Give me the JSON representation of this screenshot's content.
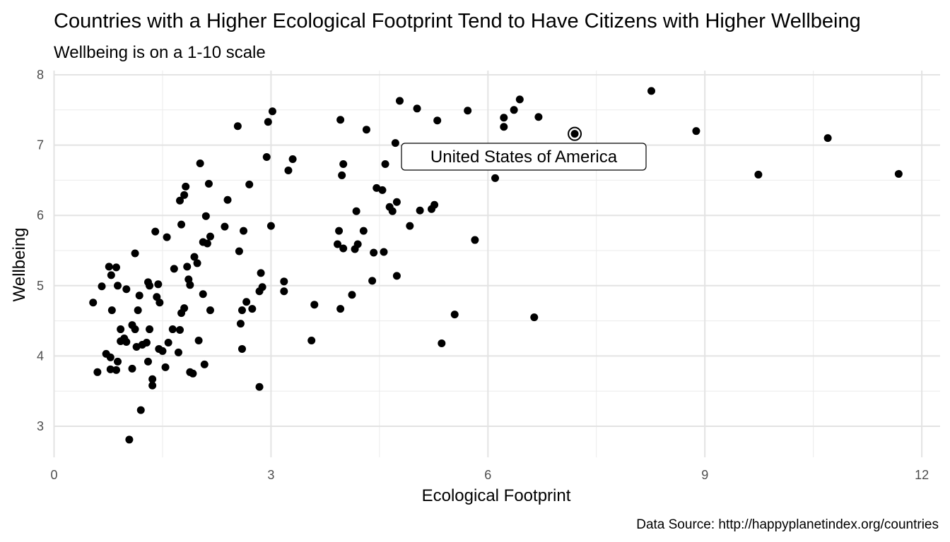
{
  "chart_data": {
    "type": "scatter",
    "title": "Countries with a Higher Ecological Footprint Tend to Have Citizens with Higher Wellbeing",
    "subtitle": "Wellbeing is on a 1-10 scale",
    "xlabel": "Ecological Footprint",
    "ylabel": "Wellbeing",
    "caption": "Data Source: http://happyplanetindex.org/countries",
    "xlim": [
      0,
      12.2
    ],
    "ylim": [
      2.6,
      8.0
    ],
    "x_ticks": [
      "0",
      "3",
      "6",
      "9",
      "12"
    ],
    "y_ticks": [
      "3",
      "4",
      "5",
      "6",
      "7",
      "8"
    ],
    "grid": true,
    "highlight": {
      "label": "United States of America",
      "x": 7.2,
      "y": 7.16
    },
    "points": [
      {
        "x": 0.54,
        "y": 4.76
      },
      {
        "x": 0.6,
        "y": 3.77
      },
      {
        "x": 0.66,
        "y": 4.99
      },
      {
        "x": 0.72,
        "y": 4.03
      },
      {
        "x": 0.76,
        "y": 5.27
      },
      {
        "x": 0.78,
        "y": 3.98
      },
      {
        "x": 0.78,
        "y": 3.81
      },
      {
        "x": 0.79,
        "y": 5.15
      },
      {
        "x": 0.8,
        "y": 4.65
      },
      {
        "x": 0.86,
        "y": 5.26
      },
      {
        "x": 0.86,
        "y": 3.8
      },
      {
        "x": 0.88,
        "y": 3.92
      },
      {
        "x": 0.88,
        "y": 5.0
      },
      {
        "x": 0.92,
        "y": 4.38
      },
      {
        "x": 0.92,
        "y": 4.21
      },
      {
        "x": 0.97,
        "y": 4.25
      },
      {
        "x": 1.0,
        "y": 4.2
      },
      {
        "x": 1.0,
        "y": 4.95
      },
      {
        "x": 1.04,
        "y": 2.81
      },
      {
        "x": 1.08,
        "y": 4.44
      },
      {
        "x": 1.08,
        "y": 3.82
      },
      {
        "x": 1.12,
        "y": 5.46
      },
      {
        "x": 1.12,
        "y": 4.38
      },
      {
        "x": 1.14,
        "y": 4.13
      },
      {
        "x": 1.16,
        "y": 4.65
      },
      {
        "x": 1.18,
        "y": 4.86
      },
      {
        "x": 1.2,
        "y": 3.23
      },
      {
        "x": 1.22,
        "y": 4.16
      },
      {
        "x": 1.28,
        "y": 4.19
      },
      {
        "x": 1.3,
        "y": 5.05
      },
      {
        "x": 1.3,
        "y": 3.92
      },
      {
        "x": 1.32,
        "y": 4.38
      },
      {
        "x": 1.32,
        "y": 5.0
      },
      {
        "x": 1.36,
        "y": 3.67
      },
      {
        "x": 1.36,
        "y": 3.58
      },
      {
        "x": 1.4,
        "y": 5.77
      },
      {
        "x": 1.42,
        "y": 4.84
      },
      {
        "x": 1.44,
        "y": 5.02
      },
      {
        "x": 1.45,
        "y": 4.1
      },
      {
        "x": 1.46,
        "y": 4.76
      },
      {
        "x": 1.5,
        "y": 4.07
      },
      {
        "x": 1.54,
        "y": 3.84
      },
      {
        "x": 1.56,
        "y": 5.69
      },
      {
        "x": 1.58,
        "y": 4.19
      },
      {
        "x": 1.64,
        "y": 4.38
      },
      {
        "x": 1.66,
        "y": 5.24
      },
      {
        "x": 1.72,
        "y": 4.05
      },
      {
        "x": 1.74,
        "y": 6.21
      },
      {
        "x": 1.74,
        "y": 4.37
      },
      {
        "x": 1.76,
        "y": 5.87
      },
      {
        "x": 1.76,
        "y": 4.61
      },
      {
        "x": 1.8,
        "y": 4.68
      },
      {
        "x": 1.8,
        "y": 6.29
      },
      {
        "x": 1.82,
        "y": 6.41
      },
      {
        "x": 1.84,
        "y": 5.27
      },
      {
        "x": 1.86,
        "y": 5.09
      },
      {
        "x": 1.88,
        "y": 5.01
      },
      {
        "x": 1.88,
        "y": 3.77
      },
      {
        "x": 1.92,
        "y": 3.75
      },
      {
        "x": 1.94,
        "y": 5.41
      },
      {
        "x": 1.98,
        "y": 5.32
      },
      {
        "x": 2.0,
        "y": 4.22
      },
      {
        "x": 2.02,
        "y": 6.74
      },
      {
        "x": 2.06,
        "y": 5.62
      },
      {
        "x": 2.06,
        "y": 4.88
      },
      {
        "x": 2.08,
        "y": 3.88
      },
      {
        "x": 2.1,
        "y": 5.99
      },
      {
        "x": 2.12,
        "y": 5.6
      },
      {
        "x": 2.14,
        "y": 6.45
      },
      {
        "x": 2.16,
        "y": 4.65
      },
      {
        "x": 2.16,
        "y": 5.7
      },
      {
        "x": 2.36,
        "y": 5.84
      },
      {
        "x": 2.4,
        "y": 6.22
      },
      {
        "x": 2.54,
        "y": 7.27
      },
      {
        "x": 2.56,
        "y": 5.49
      },
      {
        "x": 2.58,
        "y": 4.46
      },
      {
        "x": 2.6,
        "y": 4.1
      },
      {
        "x": 2.6,
        "y": 4.65
      },
      {
        "x": 2.62,
        "y": 5.78
      },
      {
        "x": 2.66,
        "y": 4.77
      },
      {
        "x": 2.7,
        "y": 6.44
      },
      {
        "x": 2.74,
        "y": 4.67
      },
      {
        "x": 2.84,
        "y": 3.56
      },
      {
        "x": 2.84,
        "y": 4.92
      },
      {
        "x": 2.86,
        "y": 5.18
      },
      {
        "x": 2.88,
        "y": 4.98
      },
      {
        "x": 2.94,
        "y": 6.83
      },
      {
        "x": 2.96,
        "y": 7.33
      },
      {
        "x": 3.0,
        "y": 5.85
      },
      {
        "x": 3.02,
        "y": 7.48
      },
      {
        "x": 3.18,
        "y": 5.06
      },
      {
        "x": 3.18,
        "y": 4.92
      },
      {
        "x": 3.24,
        "y": 6.64
      },
      {
        "x": 3.3,
        "y": 6.8
      },
      {
        "x": 3.56,
        "y": 4.22
      },
      {
        "x": 3.6,
        "y": 4.73
      },
      {
        "x": 3.92,
        "y": 5.59
      },
      {
        "x": 3.94,
        "y": 5.78
      },
      {
        "x": 3.96,
        "y": 7.36
      },
      {
        "x": 3.96,
        "y": 4.67
      },
      {
        "x": 3.98,
        "y": 6.57
      },
      {
        "x": 4.0,
        "y": 6.73
      },
      {
        "x": 4.0,
        "y": 5.53
      },
      {
        "x": 4.12,
        "y": 4.87
      },
      {
        "x": 4.16,
        "y": 5.52
      },
      {
        "x": 4.18,
        "y": 6.06
      },
      {
        "x": 4.2,
        "y": 5.59
      },
      {
        "x": 4.28,
        "y": 5.78
      },
      {
        "x": 4.32,
        "y": 7.22
      },
      {
        "x": 4.4,
        "y": 5.07
      },
      {
        "x": 4.42,
        "y": 5.47
      },
      {
        "x": 4.46,
        "y": 6.39
      },
      {
        "x": 4.54,
        "y": 6.36
      },
      {
        "x": 4.56,
        "y": 5.48
      },
      {
        "x": 4.58,
        "y": 6.73
      },
      {
        "x": 4.64,
        "y": 6.12
      },
      {
        "x": 4.68,
        "y": 6.06
      },
      {
        "x": 4.72,
        "y": 7.03
      },
      {
        "x": 4.74,
        "y": 5.14
      },
      {
        "x": 4.74,
        "y": 6.19
      },
      {
        "x": 4.78,
        "y": 7.63
      },
      {
        "x": 4.92,
        "y": 5.85
      },
      {
        "x": 5.02,
        "y": 7.52
      },
      {
        "x": 5.06,
        "y": 6.07
      },
      {
        "x": 5.22,
        "y": 6.09
      },
      {
        "x": 5.26,
        "y": 6.15
      },
      {
        "x": 5.3,
        "y": 7.35
      },
      {
        "x": 5.36,
        "y": 4.18
      },
      {
        "x": 5.54,
        "y": 4.59
      },
      {
        "x": 5.72,
        "y": 7.49
      },
      {
        "x": 5.82,
        "y": 5.65
      },
      {
        "x": 6.1,
        "y": 6.53
      },
      {
        "x": 6.22,
        "y": 7.39
      },
      {
        "x": 6.22,
        "y": 7.26
      },
      {
        "x": 6.36,
        "y": 7.5
      },
      {
        "x": 6.44,
        "y": 7.65
      },
      {
        "x": 6.64,
        "y": 4.55
      },
      {
        "x": 6.7,
        "y": 7.4
      },
      {
        "x": 7.2,
        "y": 7.16
      },
      {
        "x": 7.56,
        "y": 6.7
      },
      {
        "x": 8.26,
        "y": 7.77
      },
      {
        "x": 8.88,
        "y": 7.2
      },
      {
        "x": 9.74,
        "y": 6.58
      },
      {
        "x": 10.7,
        "y": 7.1
      },
      {
        "x": 11.68,
        "y": 6.59
      }
    ]
  }
}
